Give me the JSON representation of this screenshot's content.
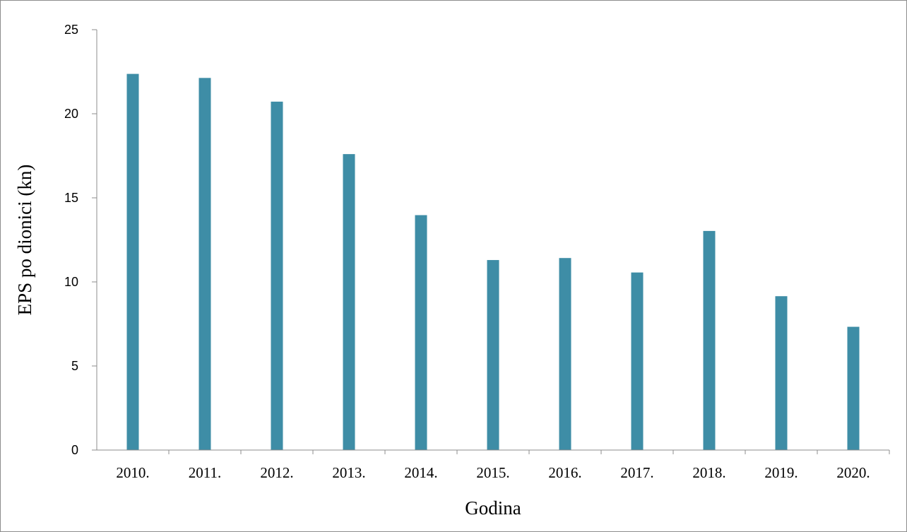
{
  "chart_data": {
    "type": "bar",
    "categories": [
      "2010.",
      "2011.",
      "2012.",
      "2013.",
      "2014.",
      "2015.",
      "2016.",
      "2017.",
      "2018.",
      "2019.",
      "2020."
    ],
    "values": [
      22.37,
      22.13,
      20.72,
      17.6,
      13.97,
      11.3,
      11.42,
      10.56,
      13.03,
      9.15,
      7.33
    ],
    "title": "",
    "xlabel": "Godina",
    "ylabel": "EPS po dionici (kn)",
    "ylim": [
      0,
      25
    ],
    "yticks": [
      "0",
      "5",
      "10",
      "15",
      "20",
      "25"
    ],
    "grid": false,
    "legend": "none",
    "colors": {
      "bar": "#3e8da6",
      "axis": "#8c8c8c",
      "border": "#8c8c8c"
    }
  }
}
